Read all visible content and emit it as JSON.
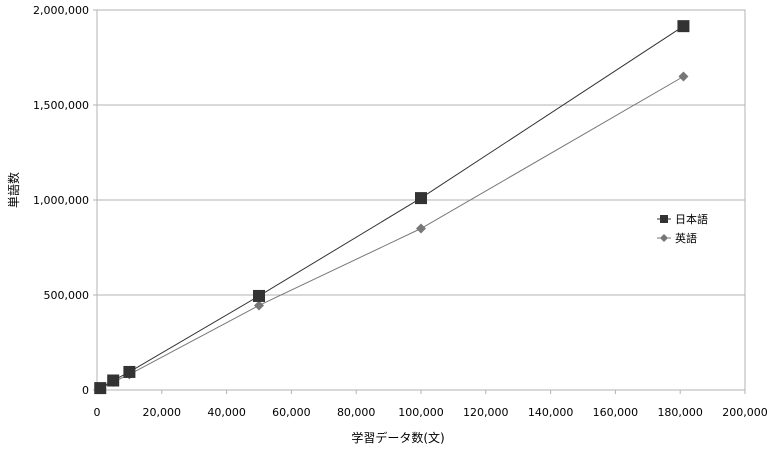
{
  "chart_data": {
    "type": "line",
    "xlabel": "学習データ数(文)",
    "ylabel": "単語数",
    "xlim": [
      0,
      200000
    ],
    "ylim": [
      0,
      2000000
    ],
    "x_ticks": [
      "0",
      "20,000",
      "40,000",
      "60,000",
      "80,000",
      "100,000",
      "120,000",
      "140,000",
      "160,000",
      "180,000",
      "200,000"
    ],
    "y_ticks": [
      "0",
      "500,000",
      "1,000,000",
      "1,500,000",
      "2,000,000"
    ],
    "grid": "horizontal",
    "legend_position": "right",
    "series": [
      {
        "name": "日本語",
        "marker": "square",
        "color": "#333333",
        "x": [
          1000,
          5000,
          10000,
          50000,
          100000,
          181000
        ],
        "y": [
          10000,
          50000,
          95000,
          495000,
          1010000,
          1915000
        ]
      },
      {
        "name": "英語",
        "marker": "diamond",
        "color": "#777777",
        "x": [
          1000,
          5000,
          10000,
          50000,
          100000,
          181000
        ],
        "y": [
          8000,
          42000,
          82000,
          445000,
          850000,
          1650000
        ]
      }
    ]
  }
}
